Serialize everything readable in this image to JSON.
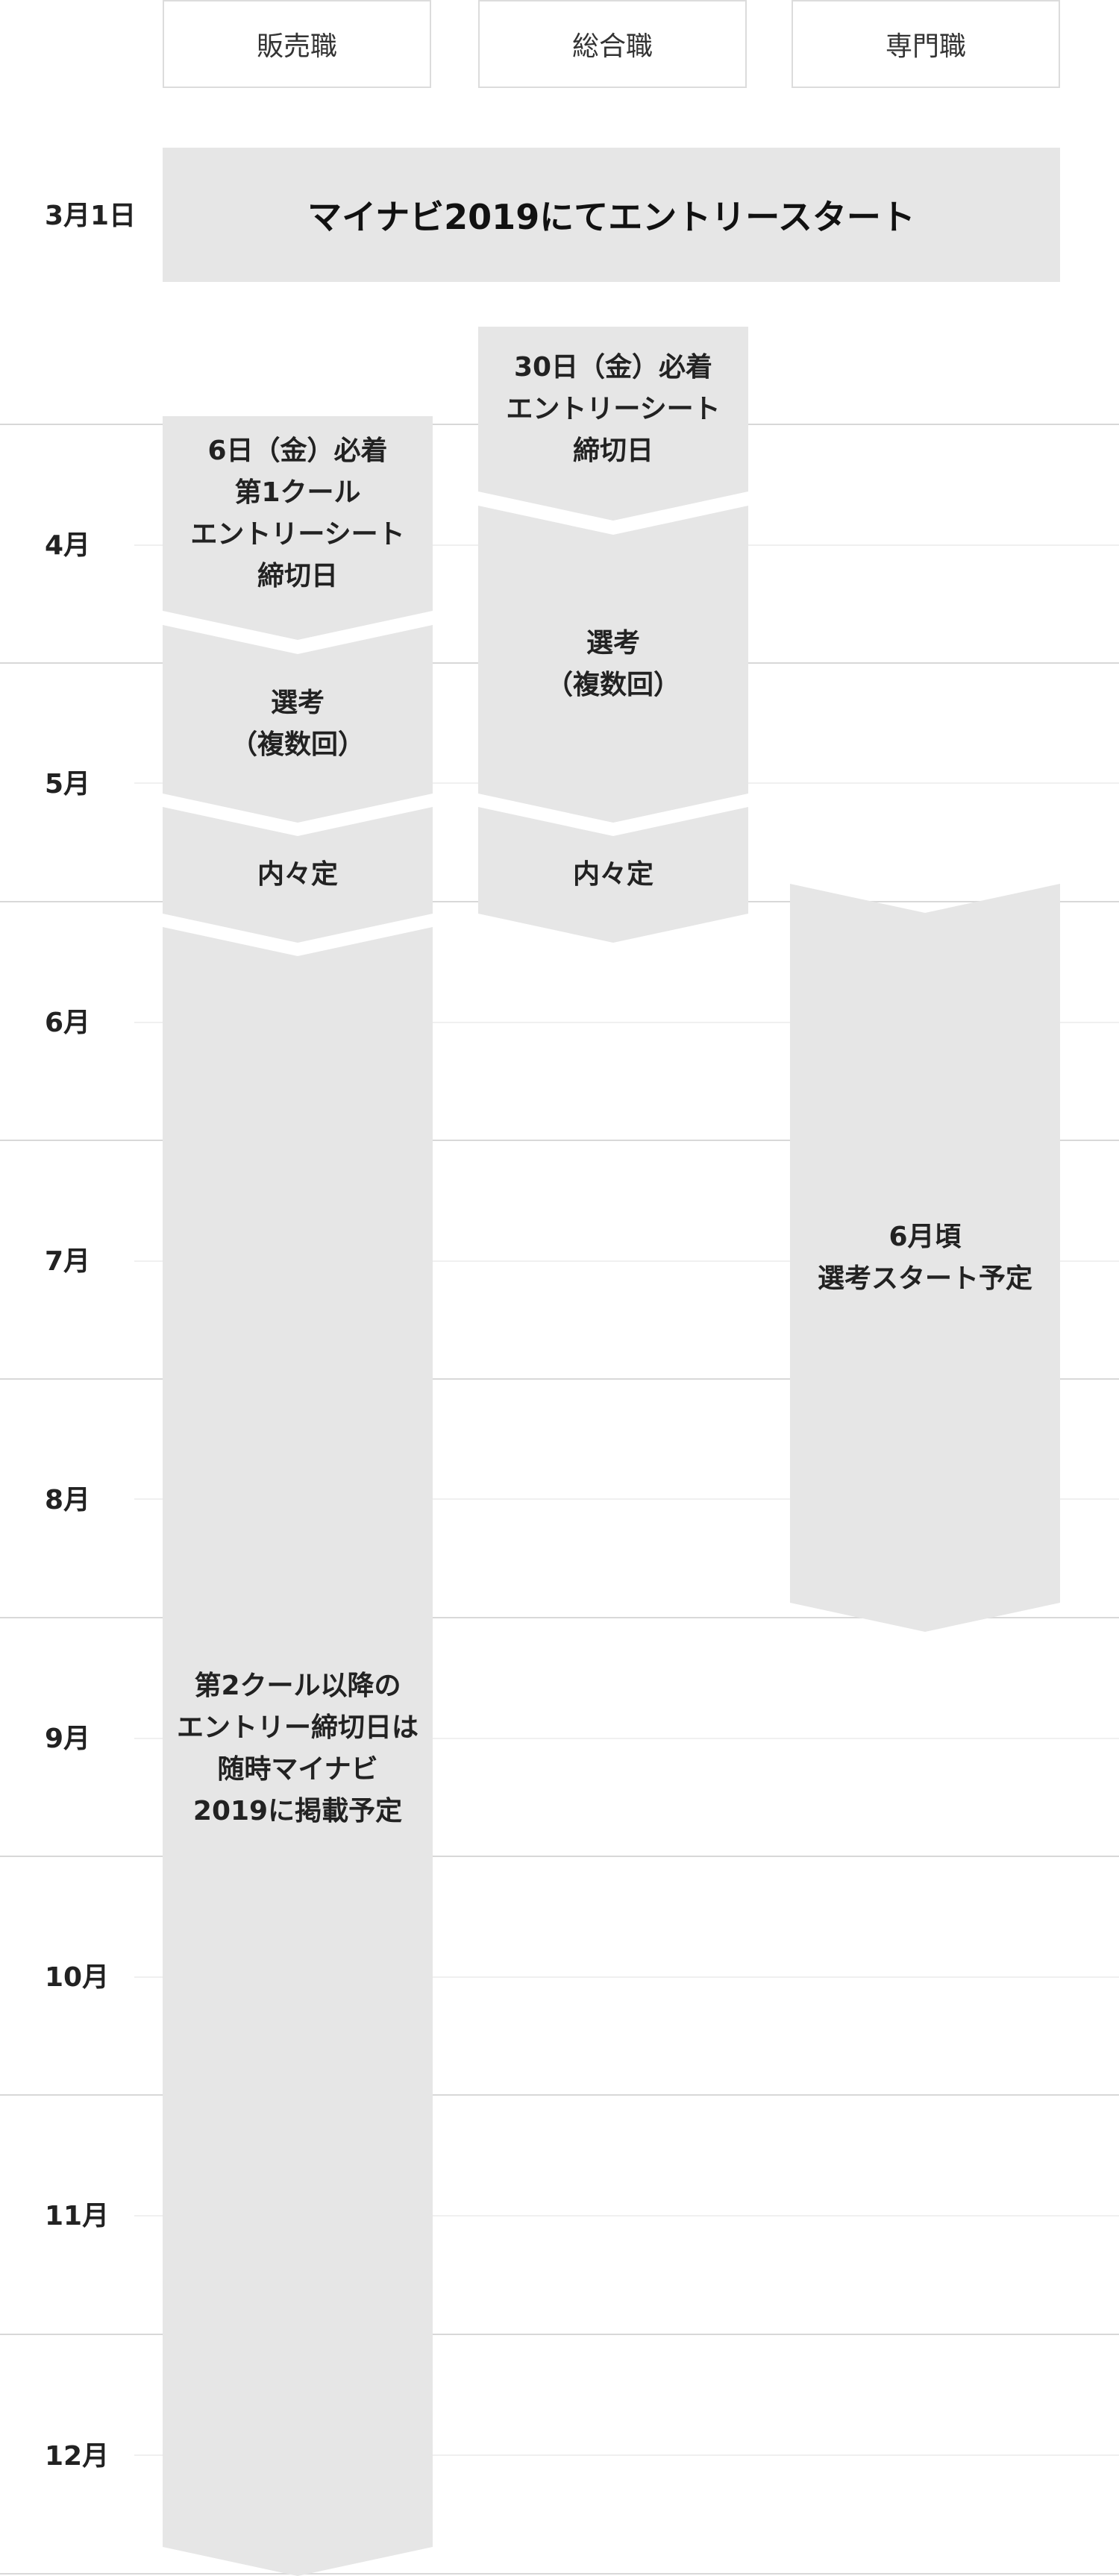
{
  "columns": [
    {
      "label": "販売職"
    },
    {
      "label": "総合職"
    },
    {
      "label": "専門職"
    }
  ],
  "months": [
    {
      "label": "3月1日"
    },
    {
      "label": "4月"
    },
    {
      "label": "5月"
    },
    {
      "label": "6月"
    },
    {
      "label": "7月"
    },
    {
      "label": "8月"
    },
    {
      "label": "9月"
    },
    {
      "label": "10月"
    },
    {
      "label": "11月"
    },
    {
      "label": "12月"
    }
  ],
  "banner": {
    "text": "マイナビ2019にてエントリースタート"
  },
  "sales": {
    "deadline": "6日（金）必着\n第1クール\nエントリーシート\n締切日",
    "selection": "選考\n（複数回）",
    "offer": "内々定",
    "later": "第2クール以降の\nエントリー締切日は\n随時マイナビ\n2019に掲載予定"
  },
  "general": {
    "deadline": "30日（金）必着\nエントリーシート\n締切日",
    "selection": "選考\n（複数回）",
    "offer": "内々定"
  },
  "specialist": {
    "selection": "6月頃\n選考スタート予定"
  },
  "colors": {
    "shape_fill": "#e6e6e6",
    "grid_major": "#d8d8d8",
    "grid_minor": "#f0f0f0",
    "header_border": "#dcdcdc"
  }
}
